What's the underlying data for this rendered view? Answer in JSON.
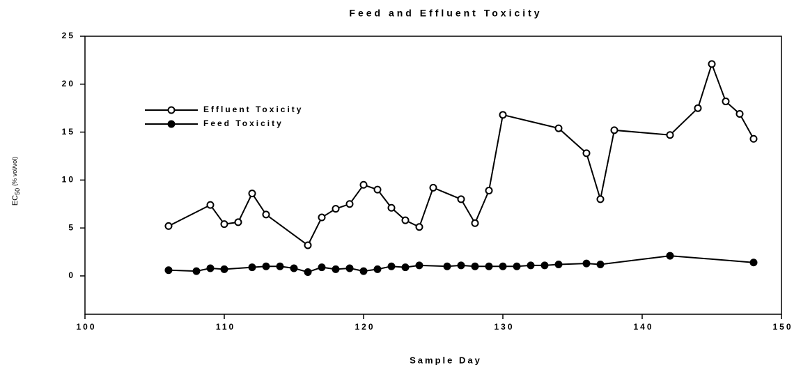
{
  "chart_data": {
    "type": "line",
    "title": "Feed and Effluent Toxicity",
    "x_label": "Sample Day",
    "y_label": {
      "main": "EC",
      "sub": "50",
      "unit": "(% vol/vol)"
    },
    "xlim": [
      100,
      150
    ],
    "xticks": [
      100,
      110,
      120,
      130,
      140,
      150
    ],
    "ylim": [
      -4,
      25
    ],
    "yticks": [
      0,
      5,
      10,
      15,
      20,
      25
    ],
    "legend": "upper left",
    "series": [
      {
        "name": "Effluent Toxicity",
        "color": "#000000",
        "marker": "open",
        "x": [
          106,
          109,
          110,
          111,
          112,
          113,
          116,
          117,
          118,
          119,
          120,
          121,
          122,
          123,
          124,
          125,
          127,
          128,
          129,
          130,
          134,
          136,
          137,
          138,
          142,
          144,
          145,
          146,
          147,
          148
        ],
        "values": [
          5.2,
          7.4,
          5.4,
          5.6,
          8.6,
          6.4,
          3.2,
          6.1,
          7.0,
          7.5,
          9.5,
          9.0,
          7.1,
          5.8,
          5.1,
          9.2,
          8.0,
          5.5,
          8.9,
          16.8,
          15.4,
          12.8,
          8.0,
          15.2,
          14.7,
          17.5,
          22.1,
          18.2,
          16.9,
          14.3
        ]
      },
      {
        "name": "Feed Toxicity",
        "color": "#000000",
        "marker": "filled",
        "x": [
          106,
          108,
          109,
          110,
          112,
          113,
          114,
          115,
          116,
          117,
          118,
          119,
          120,
          121,
          122,
          123,
          124,
          126,
          127,
          128,
          129,
          130,
          131,
          132,
          133,
          134,
          136,
          137,
          142,
          148
        ],
        "values": [
          0.6,
          0.5,
          0.8,
          0.7,
          0.9,
          1.0,
          1.0,
          0.8,
          0.4,
          0.9,
          0.7,
          0.8,
          0.5,
          0.7,
          1.0,
          0.9,
          1.1,
          1.0,
          1.1,
          1.0,
          1.0,
          1.0,
          1.0,
          1.1,
          1.1,
          1.2,
          1.3,
          1.2,
          2.1,
          1.4
        ]
      }
    ]
  }
}
